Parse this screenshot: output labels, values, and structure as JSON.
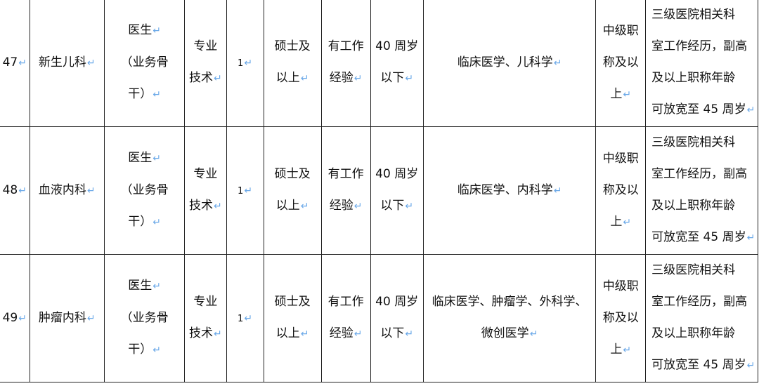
{
  "return_mark_icon": "paragraph-return-icon",
  "mark_color": "#6aa8e8",
  "rows": [
    {
      "cells": [
        {
          "lines": [
            "47"
          ],
          "marks": [
            0
          ]
        },
        {
          "lines": [
            "新生儿科"
          ],
          "marks": [
            0
          ]
        },
        {
          "lines": [
            "医生",
            "（业务骨",
            "干）"
          ],
          "marks": [
            0,
            2
          ]
        },
        {
          "lines": [
            "专业",
            "技术"
          ],
          "marks": [
            1
          ]
        },
        {
          "lines": [
            "1"
          ],
          "marks": [
            0
          ]
        },
        {
          "lines": [
            "硕士及",
            "以上"
          ],
          "marks": [
            1
          ]
        },
        {
          "lines": [
            "有工作",
            "经验"
          ],
          "marks": [
            1
          ]
        },
        {
          "lines": [
            "40 周岁",
            "以下"
          ],
          "marks": [
            1
          ]
        },
        {
          "lines": [
            "临床医学、儿科学"
          ],
          "marks": [
            0
          ]
        },
        {
          "lines": [
            "中级职",
            "称及以",
            "上"
          ],
          "marks": [
            2
          ]
        },
        {
          "lines": [
            "三级医院相关科",
            "室工作经历，副高",
            "及以上职称年龄",
            "可放宽至 45 周岁"
          ],
          "marks": [
            3
          ]
        }
      ]
    },
    {
      "cells": [
        {
          "lines": [
            "48"
          ],
          "marks": [
            0
          ]
        },
        {
          "lines": [
            "血液内科"
          ],
          "marks": [
            0
          ]
        },
        {
          "lines": [
            "医生",
            "（业务骨",
            "干）"
          ],
          "marks": [
            0,
            2
          ]
        },
        {
          "lines": [
            "专业",
            "技术"
          ],
          "marks": [
            1
          ]
        },
        {
          "lines": [
            "1"
          ],
          "marks": [
            0
          ]
        },
        {
          "lines": [
            "硕士及",
            "以上"
          ],
          "marks": [
            1
          ]
        },
        {
          "lines": [
            "有工作",
            "经验"
          ],
          "marks": [
            1
          ]
        },
        {
          "lines": [
            "40 周岁",
            "以下"
          ],
          "marks": [
            1
          ]
        },
        {
          "lines": [
            "临床医学、内科学"
          ],
          "marks": [
            0
          ]
        },
        {
          "lines": [
            "中级职",
            "称及以",
            "上"
          ],
          "marks": [
            2
          ]
        },
        {
          "lines": [
            "三级医院相关科",
            "室工作经历，副高",
            "及以上职称年龄",
            "可放宽至 45 周岁"
          ],
          "marks": [
            3
          ]
        }
      ]
    },
    {
      "cells": [
        {
          "lines": [
            "49"
          ],
          "marks": [
            0
          ]
        },
        {
          "lines": [
            "肿瘤内科"
          ],
          "marks": [
            0
          ]
        },
        {
          "lines": [
            "医生",
            "（业务骨",
            "干）"
          ],
          "marks": [
            0,
            2
          ]
        },
        {
          "lines": [
            "专业",
            "技术"
          ],
          "marks": [
            1
          ]
        },
        {
          "lines": [
            "1"
          ],
          "marks": [
            0
          ]
        },
        {
          "lines": [
            "硕士及",
            "以上"
          ],
          "marks": [
            1
          ]
        },
        {
          "lines": [
            "有工作",
            "经验"
          ],
          "marks": [
            1
          ]
        },
        {
          "lines": [
            "40 周岁",
            "以下"
          ],
          "marks": [
            1
          ]
        },
        {
          "lines": [
            "临床医学、肿瘤学、外科学、",
            "微创医学"
          ],
          "marks": [
            1
          ]
        },
        {
          "lines": [
            "中级职",
            "称及以",
            "上"
          ],
          "marks": [
            2
          ]
        },
        {
          "lines": [
            "三级医院相关科",
            "室工作经历，副高",
            "及以上职称年龄",
            "可放宽至 45 周岁"
          ],
          "marks": [
            3
          ]
        }
      ]
    }
  ]
}
